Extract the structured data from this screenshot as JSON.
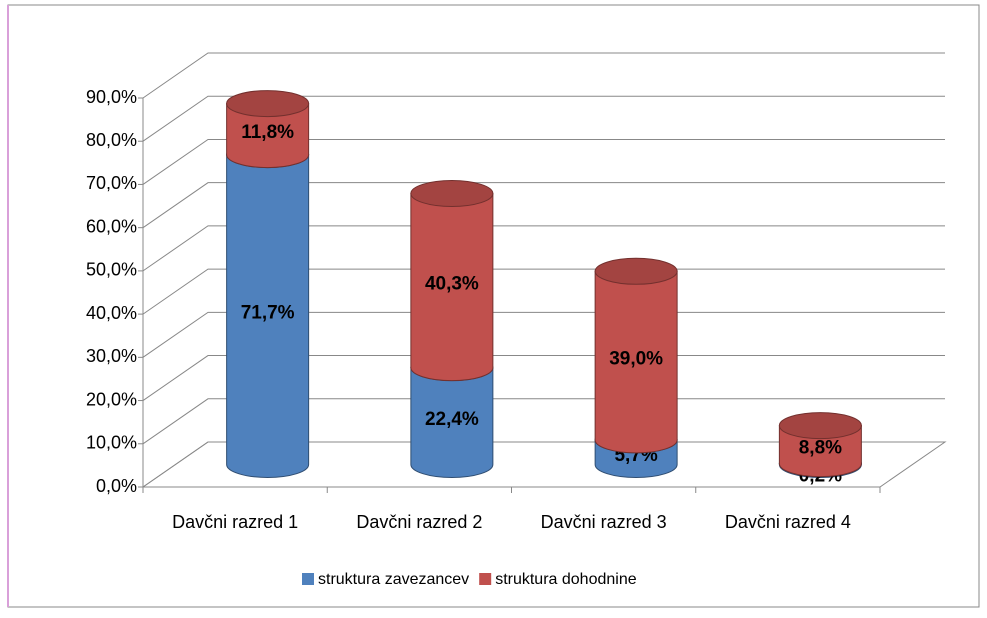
{
  "chart_data": {
    "type": "bar3d_stacked_cylinder",
    "categories": [
      "Davčni razred 1",
      "Davčni razred 2",
      "Davčni razred 3",
      "Davčni razred 4"
    ],
    "series": [
      {
        "name": "struktura zavezancev",
        "color": "#4f81bd",
        "values": [
          71.7,
          22.4,
          5.7,
          0.2
        ],
        "value_labels": [
          "71,7%",
          "22,4%",
          "5,7%",
          "0,2%"
        ]
      },
      {
        "name": "struktura dohodnine",
        "color": "#c0504d",
        "values": [
          11.8,
          40.3,
          39.0,
          8.8
        ],
        "value_labels": [
          "11,8%",
          "40,3%",
          "39,0%",
          "8,8%"
        ]
      }
    ],
    "ylim": [
      0,
      90
    ],
    "yticks": [
      {
        "value": 0,
        "label": "0,0%"
      },
      {
        "value": 10,
        "label": "10,0%"
      },
      {
        "value": 20,
        "label": "20,0%"
      },
      {
        "value": 30,
        "label": "30,0%"
      },
      {
        "value": 40,
        "label": "40,0%"
      },
      {
        "value": 50,
        "label": "50,0%"
      },
      {
        "value": 60,
        "label": "60,0%"
      },
      {
        "value": 70,
        "label": "70,0%"
      },
      {
        "value": 80,
        "label": "80,0%"
      },
      {
        "value": 90,
        "label": "90,0%"
      }
    ],
    "grid": true,
    "legend": "bottom"
  }
}
